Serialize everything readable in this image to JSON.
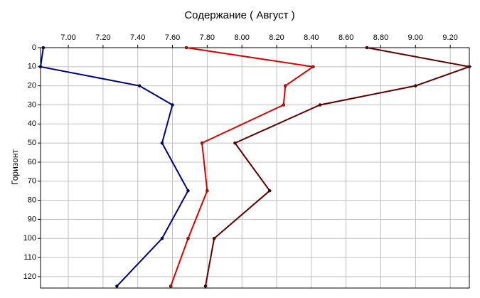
{
  "chart_data": {
    "type": "line",
    "title": "Содержание    ( Август )",
    "y_label": "Горизонт",
    "y": [
      0,
      10,
      20,
      30,
      50,
      75,
      100,
      125
    ],
    "series": [
      {
        "color": "#000080",
        "values": [
          6.856,
          6.84,
          7.41,
          7.6,
          7.54,
          7.69,
          7.54,
          7.28
        ]
      },
      {
        "color": "#e00000",
        "values": [
          7.68,
          8.41,
          8.25,
          8.24,
          7.77,
          7.8,
          7.69,
          7.59
        ]
      },
      {
        "color": "#600000",
        "values": [
          8.72,
          9.31,
          9.0,
          8.45,
          7.96,
          8.16,
          7.84,
          7.79
        ]
      }
    ],
    "xlim": [
      6.84,
      9.31
    ],
    "xticks": [
      {
        "value": 7.0,
        "label": "7.00"
      },
      {
        "value": 7.2,
        "label": "7.20"
      },
      {
        "value": 7.4,
        "label": "7.40"
      },
      {
        "value": 7.6,
        "label": "7.60"
      },
      {
        "value": 7.8,
        "label": "7.80"
      },
      {
        "value": 8.0,
        "label": "8.00"
      },
      {
        "value": 8.2,
        "label": "8.20"
      },
      {
        "value": 8.4,
        "label": "8.40"
      },
      {
        "value": 8.6,
        "label": "8.60"
      },
      {
        "value": 8.8,
        "label": "8.80"
      },
      {
        "value": 9.0,
        "label": "9.00"
      },
      {
        "value": 9.2,
        "label": "9.20"
      }
    ],
    "ylim": [
      126,
      0
    ],
    "yticks": [
      0,
      10,
      20,
      30,
      40,
      50,
      60,
      70,
      80,
      90,
      100,
      110,
      120
    ],
    "grid": true
  }
}
